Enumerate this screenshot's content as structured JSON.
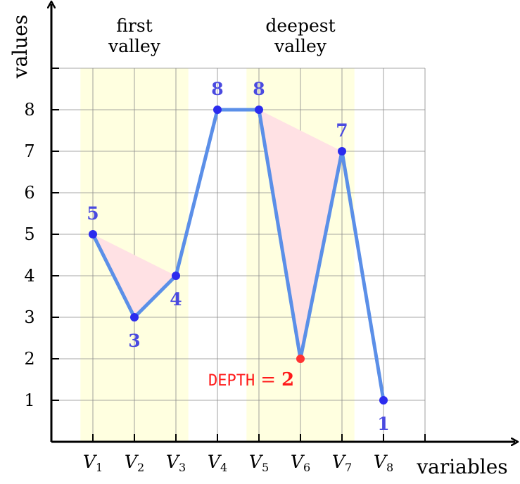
{
  "chart_data": {
    "type": "line",
    "title": "",
    "xlabel": "variables",
    "ylabel": "values",
    "categories": [
      {
        "base": "V",
        "sub": "1"
      },
      {
        "base": "V",
        "sub": "2"
      },
      {
        "base": "V",
        "sub": "3"
      },
      {
        "base": "V",
        "sub": "4"
      },
      {
        "base": "V",
        "sub": "5"
      },
      {
        "base": "V",
        "sub": "6"
      },
      {
        "base": "V",
        "sub": "7"
      },
      {
        "base": "V",
        "sub": "8"
      }
    ],
    "values": [
      5,
      3,
      4,
      8,
      8,
      2,
      7,
      1
    ],
    "value_labels": [
      "5",
      "3",
      "4",
      "8",
      "8",
      "2",
      "7",
      "1"
    ],
    "y_ticks": [
      "1",
      "2",
      "3",
      "4",
      "5",
      "6",
      "7",
      "8"
    ],
    "ylim": [
      0,
      9
    ],
    "xlim": [
      0,
      9
    ],
    "grid": true,
    "colors": {
      "line": "#5b8fe8",
      "point": "#2b2bee",
      "label": "#4a4ae0",
      "highlight_point": "#ff3333",
      "depth_text": "#ff1a1a",
      "valley_band": "#ffffe0",
      "valley_fill": "#ffe1e4",
      "grid": "#8a8a8a",
      "axis": "#000000"
    },
    "highlight_index": 5,
    "regions": [
      {
        "label_lines": [
          "first",
          "valley"
        ],
        "x_from": 0.7,
        "x_to": 3.3
      },
      {
        "label_lines": [
          "deepest",
          "valley"
        ],
        "x_from": 4.7,
        "x_to": 7.3
      }
    ],
    "valley_triangles": [
      {
        "from": 0,
        "bottom": 1,
        "to": 2
      },
      {
        "from": 4,
        "bottom": 5,
        "to": 6
      }
    ],
    "annotation": {
      "text": "DEPTH",
      "equals": "=",
      "value": "2"
    }
  }
}
